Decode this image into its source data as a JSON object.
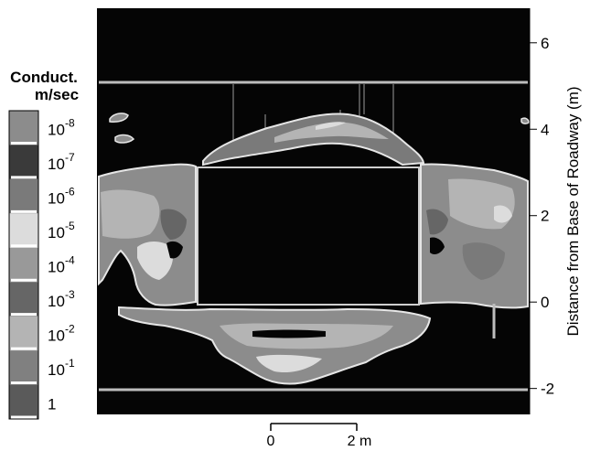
{
  "chart_data": {
    "type": "heatmap",
    "title": "",
    "ylabel": "Distance from Base of Roadway (m)",
    "xlabel": "",
    "ylim": [
      -2.6,
      6.8
    ],
    "y_ticks": [
      -2,
      0,
      2,
      4,
      6
    ],
    "legend": {
      "title_line1": "Conduct.",
      "title_line2": "m/sec",
      "placement": "left",
      "entries": [
        {
          "base": "10",
          "exp": "-8",
          "color": "#8c8c8c"
        },
        {
          "base": "10",
          "exp": "-7",
          "color": "#3a3a3a"
        },
        {
          "base": "10",
          "exp": "-6",
          "color": "#7a7a7a"
        },
        {
          "base": "10",
          "exp": "-5",
          "color": "#dcdcdc"
        },
        {
          "base": "10",
          "exp": "-4",
          "color": "#999999"
        },
        {
          "base": "10",
          "exp": "-3",
          "color": "#666666"
        },
        {
          "base": "10",
          "exp": "-2",
          "color": "#b4b4b4"
        },
        {
          "base": "10",
          "exp": "-1",
          "color": "#808080"
        },
        {
          "base": "1",
          "exp": "",
          "color": "#5a5a5a"
        }
      ]
    },
    "scale_bar": {
      "start_label": "0",
      "end_label": "2 m",
      "length_m": 2
    },
    "colors": {
      "background": "#050505",
      "outline": "#e6e6e6"
    }
  }
}
